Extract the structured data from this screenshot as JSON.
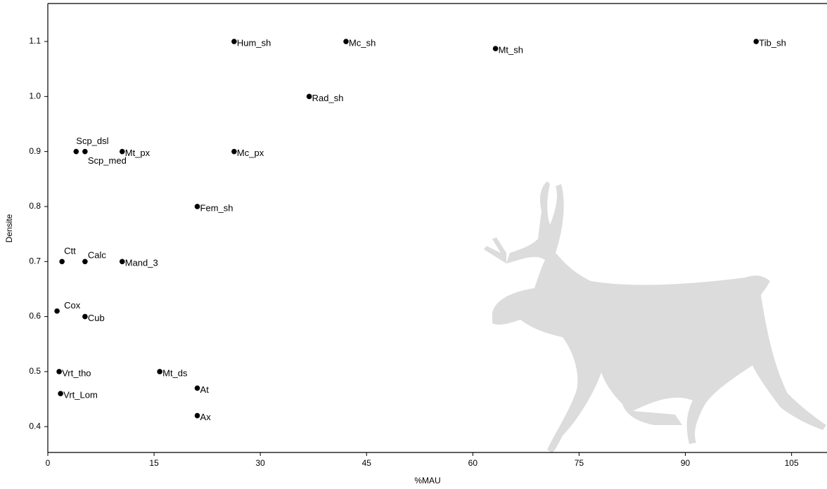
{
  "chart_data": {
    "type": "scatter",
    "xlabel": "%MAU",
    "ylabel": "Densite",
    "labels": [
      "Hum_sh",
      "Mc_sh",
      "Mt_sh",
      "Tib_sh",
      "Rad_sh",
      "Scp_dsl",
      "Scp_med",
      "Mt_px",
      "Mc_px",
      "Fem_sh",
      "Ctt",
      "Calc",
      "Mand_3",
      "Cox",
      "Cub",
      "Vrt_tho",
      "Vrt_Lom",
      "Mt_ds",
      "At",
      "Ax"
    ],
    "x": [
      26.3,
      42.1,
      63.2,
      100.0,
      36.9,
      4.0,
      5.25,
      10.5,
      26.3,
      21.1,
      2.0,
      5.25,
      10.5,
      1.3,
      5.25,
      1.6,
      1.8,
      15.8,
      21.1,
      21.1
    ],
    "values": [
      1.1,
      1.1,
      1.087,
      1.1,
      1.0,
      0.9,
      0.9,
      0.9,
      0.9,
      0.8,
      0.7,
      0.7,
      0.7,
      0.61,
      0.6,
      0.5,
      0.46,
      0.5,
      0.47,
      0.42
    ],
    "color": "#000000",
    "xlim": [
      0,
      110
    ],
    "ylim": [
      0.353,
      1.169
    ],
    "xticks": [
      0,
      15,
      30,
      45,
      60,
      75,
      90,
      105
    ],
    "yticks": [
      0.4,
      0.5,
      0.6,
      0.7,
      0.8,
      0.9,
      {
        "value": 1,
        "label": "1.0"
      },
      1.1
    ]
  }
}
